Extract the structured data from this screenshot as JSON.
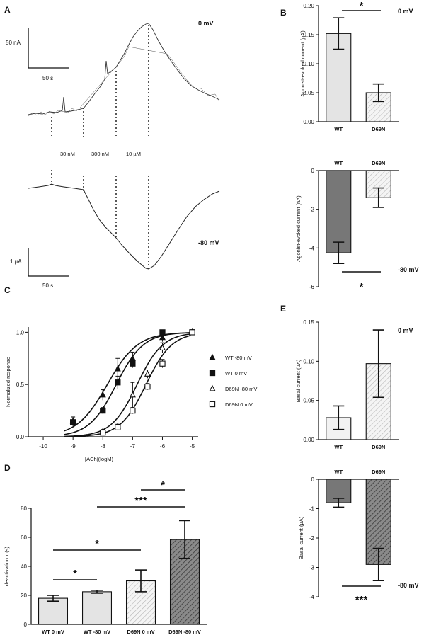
{
  "panels": {
    "a": "A",
    "b": "B",
    "c": "C",
    "d": "D",
    "e": "E"
  },
  "panel_a": {
    "top_voltage": "0 mV",
    "bottom_voltage": "-80 mV",
    "scale_top_y": "50 nA",
    "scale_top_x": "50 s",
    "scale_bottom_y": "1 µA",
    "scale_bottom_x": "50 s",
    "concentrations": [
      "30 nM",
      "300 nM",
      "10 µM"
    ]
  },
  "chart_data": [
    {
      "id": "B-top",
      "type": "bar",
      "ylabel": "Agonist-evoked current (µA)",
      "categories": [
        "WT",
        "D69N"
      ],
      "values": [
        0.152,
        0.05
      ],
      "errors": [
        0.027,
        0.015
      ],
      "ylim": [
        0,
        0.2
      ],
      "yticks": [
        "0.00",
        "0.05",
        "0.10",
        "0.15",
        "0.20"
      ],
      "voltage": "0 mV",
      "significance": "*"
    },
    {
      "id": "B-bottom",
      "type": "bar",
      "ylabel": "Agonist-evoked current (nA)",
      "categories": [
        "WT",
        "D69N"
      ],
      "values": [
        -4.25,
        -1.4
      ],
      "errors": [
        0.55,
        0.5
      ],
      "ylim": [
        -6,
        0
      ],
      "yticks": [
        "0",
        "-2",
        "-4",
        "-6"
      ],
      "voltage": "-80 mV",
      "significance": "*"
    },
    {
      "id": "C",
      "type": "scatter",
      "xlabel": "[ACh](logM)",
      "ylabel": "Normalized response",
      "xlim": [
        -10.5,
        -4.8
      ],
      "ylim": [
        0,
        1.05
      ],
      "xticks": [
        "-10",
        "-9",
        "-8",
        "-7",
        "-6",
        "-5"
      ],
      "yticks": [
        "0.0",
        "0.5",
        "1.0"
      ],
      "series": [
        {
          "name": "WT -80 mV",
          "marker": "filled-triangle",
          "x": [
            -9,
            -8,
            -7.5,
            -7,
            -6,
            -5
          ],
          "y": [
            0.15,
            0.4,
            0.65,
            0.75,
            0.95,
            1.0
          ],
          "err": [
            0.04,
            0.05,
            0.1,
            0.06,
            0.04,
            0
          ]
        },
        {
          "name": "WT 0 mV",
          "marker": "filled-square",
          "x": [
            -9,
            -8,
            -7.5,
            -7,
            -6,
            -5
          ],
          "y": [
            0.14,
            0.25,
            0.52,
            0.7,
            1.0,
            1.0
          ],
          "err": [
            0.04,
            0.03,
            0.06,
            0.04,
            0,
            0
          ]
        },
        {
          "name": "D69N -80 mV",
          "marker": "open-triangle",
          "x": [
            -8,
            -7.5,
            -7,
            -6.5,
            -6,
            -5
          ],
          "y": [
            0.05,
            0.1,
            0.4,
            0.6,
            0.85,
            1.0
          ],
          "err": [
            0.02,
            0.02,
            0.12,
            0.04,
            0.05,
            0
          ]
        },
        {
          "name": "D69N 0 mV",
          "marker": "open-square",
          "x": [
            -8,
            -7.5,
            -7,
            -6.5,
            -6,
            -5
          ],
          "y": [
            0.04,
            0.09,
            0.25,
            0.48,
            0.7,
            1.0
          ],
          "err": [
            0.02,
            0.02,
            0.03,
            0.03,
            0.04,
            0
          ]
        }
      ],
      "fits": [
        {
          "ec50": -7.85,
          "hill": 0.85
        },
        {
          "ec50": -7.55,
          "hill": 0.95
        },
        {
          "ec50": -6.85,
          "hill": 1.0
        },
        {
          "ec50": -6.55,
          "hill": 1.0
        }
      ]
    },
    {
      "id": "D",
      "type": "bar",
      "ylabel": "deactivation τ (s)",
      "categories": [
        "WT 0 mV",
        "WT -80 mV",
        "D69N 0 mV",
        "D69N -80 mV"
      ],
      "values": [
        18,
        22.5,
        30,
        58.5
      ],
      "errors": [
        2,
        1,
        7.5,
        13
      ],
      "ylim": [
        0,
        80
      ],
      "yticks": [
        "0",
        "20",
        "40",
        "60",
        "80"
      ],
      "significance": [
        {
          "pair": [
            0,
            1
          ],
          "label": "*"
        },
        {
          "pair": [
            0,
            2
          ],
          "label": "*"
        },
        {
          "pair": [
            1,
            3
          ],
          "label": "***"
        },
        {
          "pair": [
            2,
            3
          ],
          "label": "*"
        }
      ]
    },
    {
      "id": "E-top",
      "type": "bar",
      "ylabel": "Basal current (µA)",
      "categories": [
        "WT",
        "D69N"
      ],
      "values": [
        0.028,
        0.097
      ],
      "errors": [
        0.015,
        0.043
      ],
      "ylim": [
        0,
        0.15
      ],
      "yticks": [
        "0.00",
        "0.05",
        "0.10",
        "0.15"
      ],
      "voltage": "0 mV"
    },
    {
      "id": "E-bottom",
      "type": "bar",
      "ylabel": "Basal current (µA)",
      "categories": [
        "WT",
        "D69N"
      ],
      "values": [
        -0.8,
        -2.9
      ],
      "errors": [
        0.15,
        0.55
      ],
      "ylim": [
        -4,
        0
      ],
      "yticks": [
        "0",
        "-1",
        "-2",
        "-3",
        "-4"
      ],
      "voltage": "-80 mV",
      "significance": "***"
    }
  ],
  "colors": {
    "wt": "#e4e4e4",
    "wt_dark": "#777777",
    "d69n": "#f2f2f2",
    "hatch": "#9a9a9a",
    "hatch_dark": "#444444"
  }
}
